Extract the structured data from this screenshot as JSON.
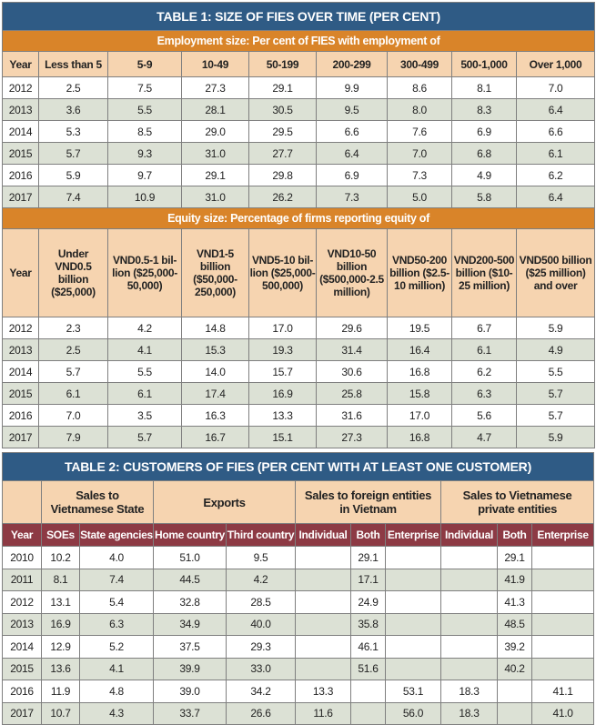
{
  "table1": {
    "title": "TABLE 1: SIZE OF FIES OVER TIME (PER CENT)",
    "employment": {
      "heading": "Employment size: Per cent of FIES with employment of",
      "columns": [
        "Year",
        "Less than 5",
        "5-9",
        "10-49",
        "50-199",
        "200-299",
        "300-499",
        "500-1,000",
        "Over 1,000"
      ],
      "rows": [
        [
          "2012",
          "2.5",
          "7.5",
          "27.3",
          "29.1",
          "9.9",
          "8.6",
          "8.1",
          "7.0"
        ],
        [
          "2013",
          "3.6",
          "5.5",
          "28.1",
          "30.5",
          "9.5",
          "8.0",
          "8.3",
          "6.4"
        ],
        [
          "2014",
          "5.3",
          "8.5",
          "29.0",
          "29.5",
          "6.6",
          "7.6",
          "6.9",
          "6.6"
        ],
        [
          "2015",
          "5.7",
          "9.3",
          "31.0",
          "27.7",
          "6.4",
          "7.0",
          "6.8",
          "6.1"
        ],
        [
          "2016",
          "5.9",
          "9.7",
          "29.1",
          "29.8",
          "6.9",
          "7.3",
          "4.9",
          "6.2"
        ],
        [
          "2017",
          "7.4",
          "10.9",
          "31.0",
          "26.2",
          "7.3",
          "5.0",
          "5.8",
          "6.4"
        ]
      ]
    },
    "equity": {
      "heading": "Equity size: Percentage of firms reporting equity of",
      "columns": [
        "Year",
        "Under VND0.5 billion ($25,000)",
        "VND0.5-1 bil-lion ($25,000-50,000)",
        "VND1-5 billion ($50,000-250,000)",
        "VND5-10 bil-lion ($25,000-500,000)",
        "VND10-50 billion ($500,000-2.5 million)",
        "VND50-200 billion ($2.5-10 million)",
        "VND200-500 billion ($10-25 million)",
        "VND500 billion ($25 million) and over"
      ],
      "rows": [
        [
          "2012",
          "2.3",
          "4.2",
          "14.8",
          "17.0",
          "29.6",
          "19.5",
          "6.7",
          "5.9"
        ],
        [
          "2013",
          "2.5",
          "4.1",
          "15.3",
          "19.3",
          "31.4",
          "16.4",
          "6.1",
          "4.9"
        ],
        [
          "2014",
          "5.7",
          "5.5",
          "14.0",
          "15.7",
          "30.6",
          "16.8",
          "6.2",
          "5.5"
        ],
        [
          "2015",
          "6.1",
          "6.1",
          "17.4",
          "16.9",
          "25.8",
          "15.8",
          "6.3",
          "5.7"
        ],
        [
          "2016",
          "7.0",
          "3.5",
          "16.3",
          "13.3",
          "31.6",
          "17.0",
          "5.6",
          "5.7"
        ],
        [
          "2017",
          "7.9",
          "5.7",
          "16.7",
          "15.1",
          "27.3",
          "16.8",
          "4.7",
          "5.9"
        ]
      ]
    }
  },
  "table2": {
    "title": "TABLE 2: CUSTOMERS OF FIES (PER CENT WITH AT LEAST ONE CUSTOMER)",
    "groups": [
      {
        "label": "",
        "span": 1
      },
      {
        "label": "Sales to Vietnamese State",
        "span": 2
      },
      {
        "label": "Exports",
        "span": 2
      },
      {
        "label": "Sales to foreign entities in Vietnam",
        "span": 3
      },
      {
        "label": "Sales to Vietnamese private entities",
        "span": 3
      }
    ],
    "columns": [
      "Year",
      "SOEs",
      "State agencies",
      "Home country",
      "Third country",
      "Individual",
      "Both",
      "Enterprise",
      "Individual",
      "Both",
      "Enterprise"
    ],
    "rows": [
      [
        "2010",
        "10.2",
        "4.0",
        "51.0",
        "9.5",
        "",
        "29.1",
        "",
        "",
        "29.1",
        ""
      ],
      [
        "2011",
        "8.1",
        "7.4",
        "44.5",
        "4.2",
        "",
        "17.1",
        "",
        "",
        "41.9",
        ""
      ],
      [
        "2012",
        "13.1",
        "5.4",
        "32.8",
        "28.5",
        "",
        "24.9",
        "",
        "",
        "41.3",
        ""
      ],
      [
        "2013",
        "16.9",
        "6.3",
        "34.9",
        "40.0",
        "",
        "35.8",
        "",
        "",
        "48.5",
        ""
      ],
      [
        "2014",
        "12.9",
        "5.2",
        "37.5",
        "29.3",
        "",
        "46.1",
        "",
        "",
        "39.2",
        ""
      ],
      [
        "2015",
        "13.6",
        "4.1",
        "39.9",
        "33.0",
        "",
        "51.6",
        "",
        "",
        "40.2",
        ""
      ],
      [
        "2016",
        "11.9",
        "4.8",
        "39.0",
        "34.2",
        "13.3",
        "",
        "53.1",
        "18.3",
        "",
        "41.1"
      ],
      [
        "2017",
        "10.7",
        "4.3",
        "33.7",
        "26.6",
        "11.6",
        "",
        "56.0",
        "18.3",
        "",
        "41.0"
      ]
    ]
  },
  "colors": {
    "title": "#2f5b85",
    "section": "#d98429",
    "header": "#f6d4b0",
    "subheader": "#8d3a44",
    "alt_row": "#dce1d5"
  }
}
